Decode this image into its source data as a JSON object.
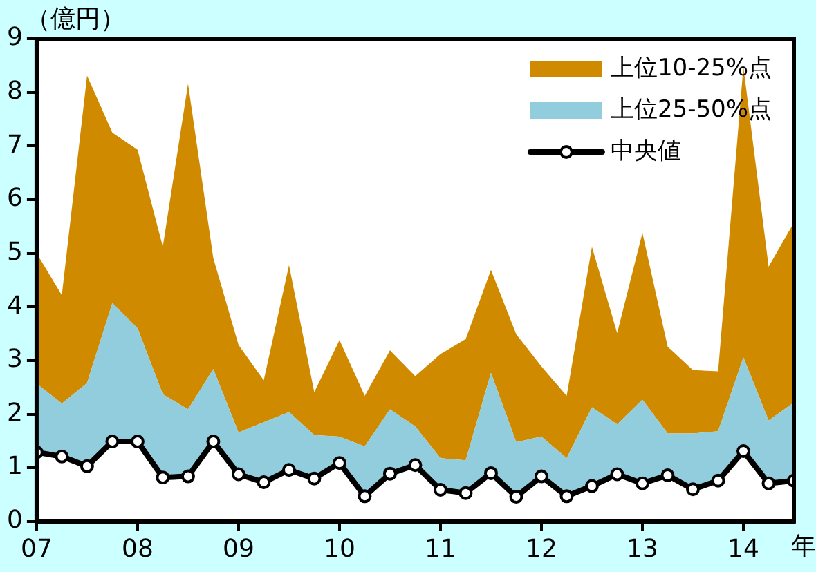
{
  "chart_data": {
    "type": "area",
    "ylabel": "（億円）",
    "xlabel": "年",
    "x": [
      2007,
      2007.25,
      2007.5,
      2007.75,
      2008,
      2008.25,
      2008.5,
      2008.75,
      2009,
      2009.25,
      2009.5,
      2009.75,
      2010,
      2010.25,
      2010.5,
      2010.75,
      2011,
      2011.25,
      2011.5,
      2011.75,
      2012,
      2012.25,
      2012.5,
      2012.75,
      2013,
      2013.25,
      2013.5,
      2013.75,
      2014,
      2014.25,
      2014.5
    ],
    "series": [
      {
        "name": "上位10-25%点",
        "color": "#d08a00",
        "values": [
          5.0,
          4.22,
          8.31,
          7.25,
          6.93,
          5.12,
          8.16,
          4.91,
          3.29,
          2.63,
          4.78,
          2.41,
          3.38,
          2.34,
          3.19,
          2.71,
          3.12,
          3.4,
          4.69,
          3.49,
          2.89,
          2.34,
          5.12,
          3.51,
          5.38,
          3.26,
          2.82,
          2.8,
          8.48,
          4.75,
          5.57
        ]
      },
      {
        "name": "上位25-50%点",
        "color": "#92cddd",
        "values": [
          2.57,
          2.2,
          2.58,
          4.07,
          3.6,
          2.37,
          2.09,
          2.84,
          1.66,
          1.85,
          2.04,
          1.61,
          1.58,
          1.4,
          2.09,
          1.77,
          1.18,
          1.14,
          2.77,
          1.48,
          1.58,
          1.18,
          2.13,
          1.81,
          2.27,
          1.64,
          1.64,
          1.68,
          3.06,
          1.88,
          2.22
        ]
      },
      {
        "name": "中央値",
        "type": "line",
        "marker": "circle",
        "color": "#000000",
        "values": [
          1.29,
          1.21,
          1.03,
          1.49,
          1.49,
          0.82,
          0.84,
          1.49,
          0.88,
          0.73,
          0.96,
          0.8,
          1.09,
          0.47,
          0.89,
          1.05,
          0.59,
          0.53,
          0.9,
          0.46,
          0.84,
          0.47,
          0.66,
          0.88,
          0.71,
          0.86,
          0.6,
          0.76,
          1.31,
          0.71,
          0.76
        ]
      }
    ],
    "xlim": [
      2007,
      2014.5
    ],
    "xticks": [
      {
        "value": 2007,
        "label": "07"
      },
      {
        "value": 2008,
        "label": "08"
      },
      {
        "value": 2009,
        "label": "09"
      },
      {
        "value": 2010,
        "label": "10"
      },
      {
        "value": 2011,
        "label": "11"
      },
      {
        "value": 2012,
        "label": "12"
      },
      {
        "value": 2013,
        "label": "13"
      },
      {
        "value": 2014,
        "label": "14"
      }
    ],
    "ylim": [
      0,
      9
    ],
    "yticks": [
      0,
      1,
      2,
      3,
      4,
      5,
      6,
      7,
      8,
      9
    ],
    "grid": false,
    "legend": "top right"
  }
}
